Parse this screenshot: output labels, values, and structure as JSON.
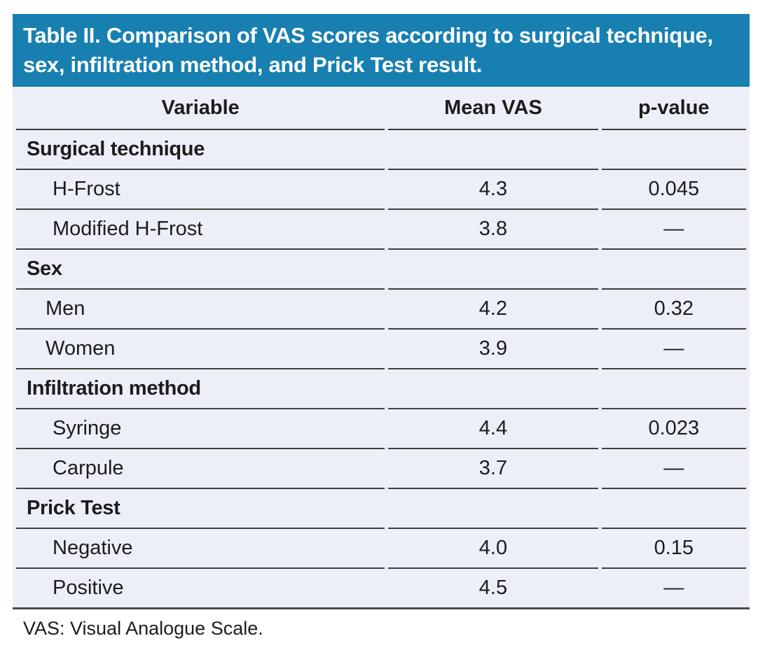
{
  "page": {
    "title": "Table II. Comparison of VAS scores according to surgical technique, sex, infiltration method, and Prick Test result.",
    "footnote": "VAS: Visual Analogue Scale."
  },
  "colors": {
    "title_bar_blue": "#187FB1",
    "row_background": "#ECEFF7",
    "row_divider": "#3F3F3F",
    "text": "#1C1C1C",
    "title_text": "#FFFFFF"
  },
  "table": {
    "columns": [
      "Variable",
      "Mean VAS",
      "p-value"
    ],
    "sections": [
      {
        "label": "Surgical technique",
        "rows": [
          {
            "label": "H-Frost",
            "mean_vas": "4.3",
            "p_value": "0.045"
          },
          {
            "label": "Modified H-Frost",
            "mean_vas": "3.8",
            "p_value": "—"
          }
        ]
      },
      {
        "label": "Sex",
        "rows": [
          {
            "label": "Men",
            "mean_vas": "4.2",
            "p_value": "0.32"
          },
          {
            "label": "Women",
            "mean_vas": "3.9",
            "p_value": "—"
          }
        ]
      },
      {
        "label": "Infiltration method",
        "rows": [
          {
            "label": "Syringe",
            "mean_vas": "4.4",
            "p_value": "0.023"
          },
          {
            "label": "Carpule",
            "mean_vas": "3.7",
            "p_value": "—"
          }
        ]
      },
      {
        "label": "Prick Test",
        "rows": [
          {
            "label": "Negative",
            "mean_vas": "4.0",
            "p_value": "0.15"
          },
          {
            "label": "Positive",
            "mean_vas": "4.5",
            "p_value": "—"
          }
        ]
      }
    ]
  }
}
